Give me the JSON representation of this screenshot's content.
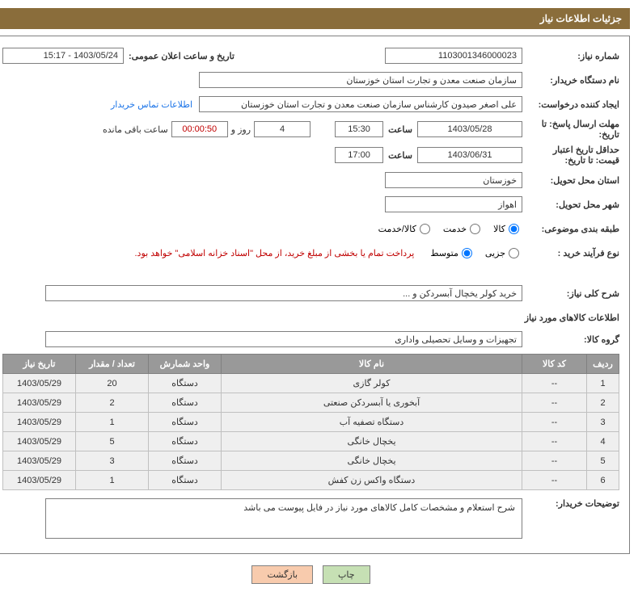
{
  "header": {
    "title": "جزئیات اطلاعات نیاز"
  },
  "details": {
    "need_no_label": "شماره نیاز:",
    "need_no": "1103001346000023",
    "announce_label": "تاریخ و ساعت اعلان عمومی:",
    "announce_value": "1403/05/24 - 15:17",
    "buyer_label": "نام دستگاه خریدار:",
    "buyer_value": "سازمان صنعت معدن و تجارت استان خوزستان",
    "requester_label": "ایجاد کننده درخواست:",
    "requester_value": "علی اصغر صیدون کارشناس سازمان صنعت معدن و تجارت استان خوزستان",
    "contact_link": "اطلاعات تماس خریدار",
    "response_deadline_label": "مهلت ارسال پاسخ: تا تاریخ:",
    "response_date": "1403/05/28",
    "time_label": "ساعت",
    "response_time": "15:30",
    "days_value": "4",
    "days_label": "روز و",
    "timer_value": "00:00:50",
    "remaining_label": "ساعت باقی مانده",
    "validity_label": "حداقل تاریخ اعتبار قیمت: تا تاریخ:",
    "validity_date": "1403/06/31",
    "validity_time": "17:00",
    "province_label": "استان محل تحویل:",
    "province_value": "خوزستان",
    "city_label": "شهر محل تحویل:",
    "city_value": "اهواز",
    "category_label": "طبقه بندی موضوعی:",
    "radio1": "کالا",
    "radio2": "خدمت",
    "radio3": "کالا/خدمت",
    "process_label": "نوع فرآیند خرید :",
    "radio_p1": "جزیی",
    "radio_p2": "متوسط",
    "payment_note": "پرداخت تمام یا بخشی از مبلغ خرید، از محل \"اسناد خزانه اسلامی\" خواهد بود.",
    "desc_label": "شرح کلی نیاز:",
    "desc_value": "خرید کولر یخچال آبسردکن و ...",
    "goods_section_title": "اطلاعات کالاهای مورد نیاز",
    "group_label": "گروه کالا:",
    "group_value": "تجهیزات و وسایل تحصیلی واداری",
    "buyer_note_label": "توضیحات خریدار:",
    "buyer_note_value": "شرح استعلام و مشخصات کامل کالاهای مورد نیاز در فایل پیوست می باشد"
  },
  "table": {
    "columns": [
      "ردیف",
      "کد کالا",
      "نام کالا",
      "واحد شمارش",
      "تعداد / مقدار",
      "تاریخ نیاز"
    ],
    "rows": [
      [
        "1",
        "--",
        "کولر گازی",
        "دستگاه",
        "20",
        "1403/05/29"
      ],
      [
        "2",
        "--",
        "آبخوری یا آبسردکن صنعتی",
        "دستگاه",
        "2",
        "1403/05/29"
      ],
      [
        "3",
        "--",
        "دستگاه تصفیه آب",
        "دستگاه",
        "1",
        "1403/05/29"
      ],
      [
        "4",
        "--",
        "یخچال خانگی",
        "دستگاه",
        "5",
        "1403/05/29"
      ],
      [
        "5",
        "--",
        "یخچال خانگی",
        "دستگاه",
        "3",
        "1403/05/29"
      ],
      [
        "6",
        "--",
        "دستگاه واکس زن کفش",
        "دستگاه",
        "1",
        "1403/05/29"
      ]
    ],
    "col_widths": [
      "40px",
      "80px",
      "auto",
      "90px",
      "90px",
      "90px"
    ]
  },
  "buttons": {
    "print": "چاپ",
    "back": "بازگشت"
  },
  "colors": {
    "header_bg": "#8a6d3b",
    "header_fg": "#ffffff",
    "border": "#808080",
    "th_bg": "#999999",
    "td_bg": "#efefef",
    "link": "#1a73e8",
    "warning": "#c00000",
    "btn_print": "#c6e0b4",
    "btn_back": "#f8cbad"
  }
}
